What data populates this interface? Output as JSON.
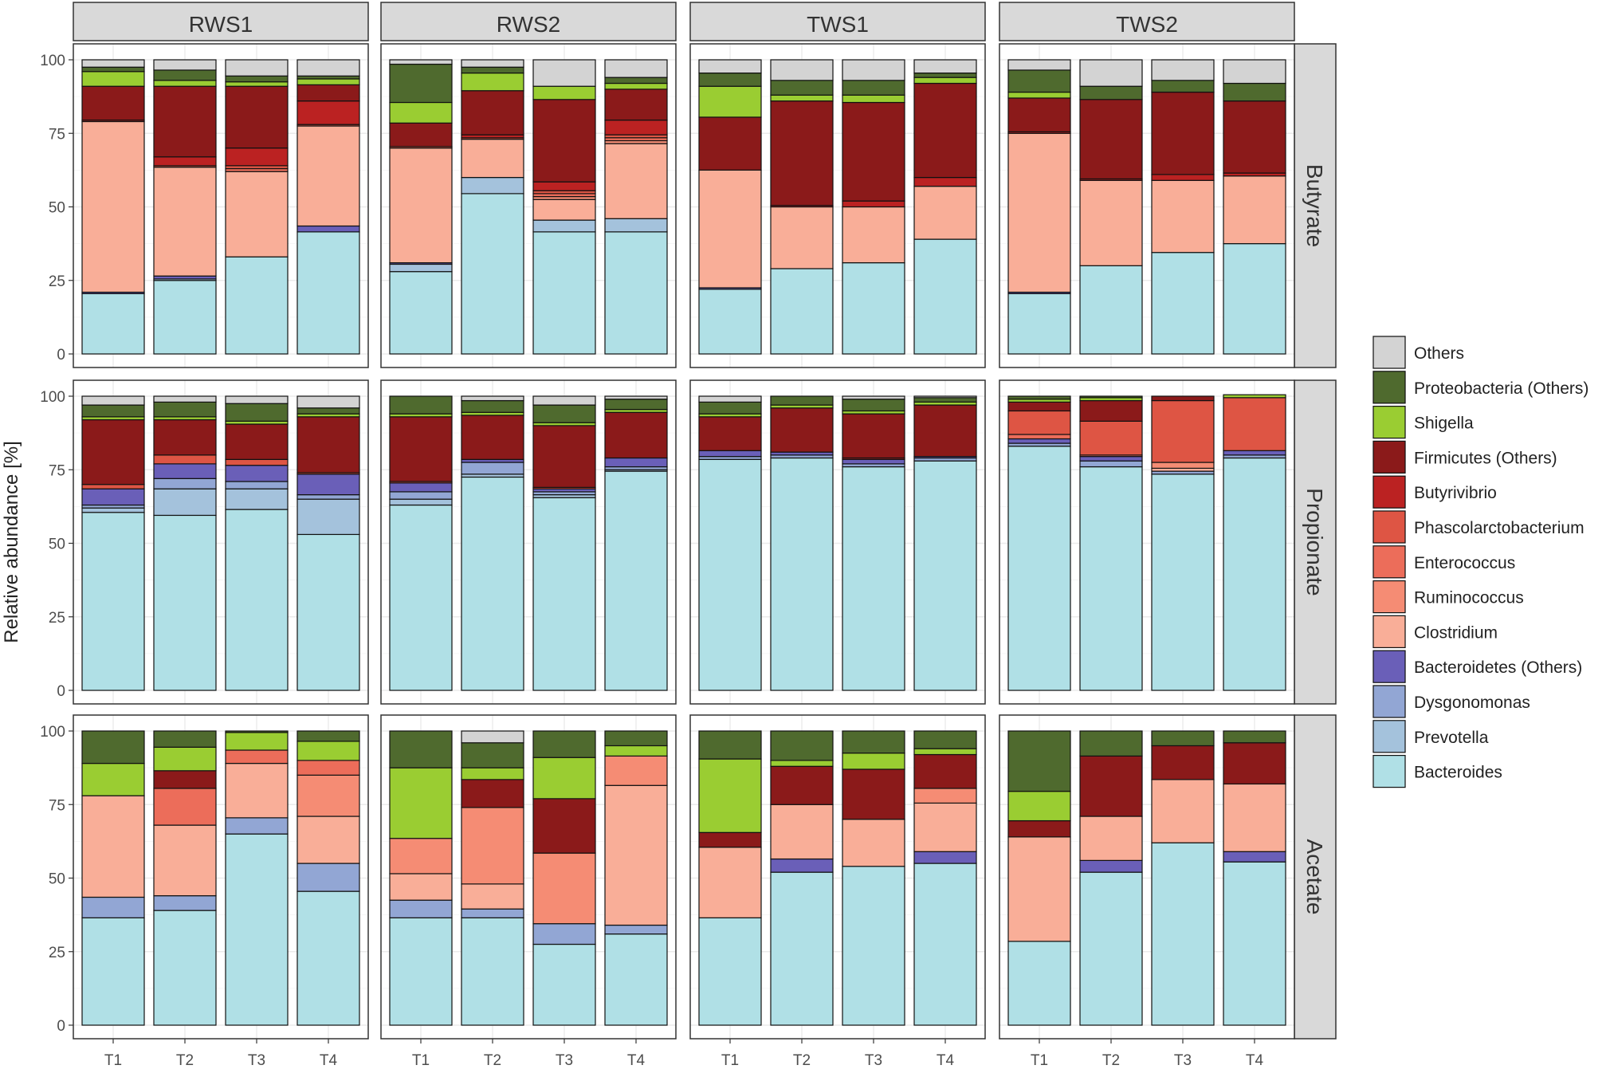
{
  "chart_data": {
    "type": "bar",
    "stacked": true,
    "title": "",
    "xlabel": "",
    "ylabel": "Relative abundance [%]",
    "ylim": [
      0,
      100
    ],
    "yticks": [
      0,
      25,
      50,
      75,
      100
    ],
    "grid": true,
    "legend_position": "right",
    "columns": [
      "RWS1",
      "RWS2",
      "TWS1",
      "TWS2"
    ],
    "rows": [
      "Butyrate",
      "Propionate",
      "Acetate"
    ],
    "categories": [
      "T1",
      "T2",
      "T3",
      "T4"
    ],
    "series": [
      {
        "name": "Bacteroides",
        "color": "#B0E0E6"
      },
      {
        "name": "Prevotella",
        "color": "#A4C2DC"
      },
      {
        "name": "Dysgonomonas",
        "color": "#92A6D4"
      },
      {
        "name": "Bacteroidetes (Others)",
        "color": "#6A5FB8"
      },
      {
        "name": "Clostridium",
        "color": "#F9AE98"
      },
      {
        "name": "Ruminococcus",
        "color": "#F58C74"
      },
      {
        "name": "Enterococcus",
        "color": "#EC6D5A"
      },
      {
        "name": "Phascolarctobacterium",
        "color": "#DE5544"
      },
      {
        "name": "Butyrivibrio",
        "color": "#BB2222"
      },
      {
        "name": "Firmicutes (Others)",
        "color": "#8B1A1A"
      },
      {
        "name": "Shigella",
        "color": "#9ACD32"
      },
      {
        "name": "Proteobacteria (Others)",
        "color": "#4F6A2E"
      },
      {
        "name": "Others",
        "color": "#D3D3D3"
      }
    ],
    "legend_order": [
      "Others",
      "Proteobacteria (Others)",
      "Shigella",
      "Firmicutes (Others)",
      "Butyrivibrio",
      "Phascolarctobacterium",
      "Enterococcus",
      "Ruminococcus",
      "Clostridium",
      "Bacteroidetes (Others)",
      "Dysgonomonas",
      "Prevotella",
      "Bacteroides"
    ],
    "panels": [
      {
        "row": "Butyrate",
        "column": "RWS1",
        "bars": [
          [
            20.5,
            0,
            0,
            0.5,
            58,
            0,
            0,
            0,
            0.5,
            11.5,
            5,
            1.5,
            2.5
          ],
          [
            25,
            0.5,
            0,
            1,
            37,
            0,
            0,
            0.5,
            3,
            24,
            2,
            3.5,
            3.5
          ],
          [
            33,
            0,
            0,
            0,
            29,
            0,
            1,
            1,
            6,
            21,
            1.5,
            2,
            5.5
          ],
          [
            41.5,
            0,
            0,
            2,
            34,
            0,
            0,
            0.5,
            8,
            5.5,
            2,
            1,
            5.5
          ]
        ]
      },
      {
        "row": "Butyrate",
        "column": "RWS2",
        "bars": [
          [
            28,
            2.5,
            0,
            0.5,
            39,
            0,
            0,
            0.5,
            0,
            8,
            7,
            13,
            1.5
          ],
          [
            54.5,
            5.5,
            0,
            0,
            13,
            0,
            0,
            0.5,
            1,
            15,
            6,
            2,
            2.5
          ],
          [
            41.5,
            4,
            0,
            0,
            7,
            1,
            1,
            1,
            3,
            28,
            4.5,
            0,
            9
          ],
          [
            41.5,
            4.5,
            0,
            0,
            25.5,
            1,
            1,
            1,
            5,
            10.5,
            2,
            2,
            6
          ]
        ]
      },
      {
        "row": "Butyrate",
        "column": "TWS1",
        "bars": [
          [
            22,
            0,
            0,
            0.5,
            40,
            0,
            0,
            0,
            0,
            18,
            10.5,
            4.5,
            4.5
          ],
          [
            29,
            0,
            0,
            0,
            21,
            0,
            0,
            0,
            0.5,
            35.5,
            2,
            5,
            7
          ],
          [
            31,
            0,
            0,
            0,
            19,
            0,
            0,
            0,
            2,
            33.5,
            2.5,
            5,
            7
          ],
          [
            39,
            0,
            0,
            0,
            18,
            0,
            0,
            0,
            3,
            32,
            2,
            1.5,
            4.5
          ]
        ]
      },
      {
        "row": "Butyrate",
        "column": "TWS2",
        "bars": [
          [
            20.5,
            0,
            0,
            0.5,
            54,
            0,
            0,
            0,
            0.5,
            11.5,
            2,
            7.5,
            3.5
          ],
          [
            30,
            0,
            0,
            0,
            29,
            0,
            0,
            0,
            0.5,
            27,
            0,
            4.5,
            9
          ],
          [
            34.5,
            0,
            0,
            0,
            24.5,
            0,
            0,
            0,
            2,
            28,
            0,
            4,
            7
          ],
          [
            37.5,
            0,
            0,
            0,
            23,
            0,
            0,
            0,
            1,
            24.5,
            0,
            6,
            8
          ]
        ]
      },
      {
        "row": "Propionate",
        "column": "RWS1",
        "bars": [
          [
            60.5,
            1.5,
            1,
            5.5,
            0,
            0,
            0,
            1.5,
            0,
            22,
            1,
            4,
            3
          ],
          [
            59.5,
            9,
            3.5,
            5,
            0,
            0,
            0,
            3,
            0,
            12,
            1,
            5,
            2
          ],
          [
            61.5,
            7,
            2.5,
            5.5,
            0,
            0,
            0,
            2,
            0,
            12,
            1,
            6,
            2.5
          ],
          [
            53,
            12,
            1.5,
            7,
            0,
            0,
            0,
            0.5,
            0,
            19,
            1,
            2,
            4
          ]
        ]
      },
      {
        "row": "Propionate",
        "column": "RWS2",
        "bars": [
          [
            63,
            2,
            2.5,
            3,
            0,
            0,
            0,
            0.5,
            0,
            22,
            1,
            6,
            0
          ],
          [
            72.5,
            1,
            4,
            1,
            0,
            0,
            0,
            0,
            0,
            15,
            1,
            4,
            1.5
          ],
          [
            65.5,
            1,
            1,
            1,
            0,
            0,
            0,
            0.5,
            0,
            21,
            1,
            6,
            3
          ],
          [
            74.5,
            0.5,
            1,
            3,
            0,
            0,
            0,
            0,
            0,
            15.5,
            1,
            3.5,
            1
          ]
        ]
      },
      {
        "row": "Propionate",
        "column": "TWS1",
        "bars": [
          [
            78.5,
            0,
            1,
            2,
            0,
            0,
            0,
            0,
            0,
            11.5,
            1,
            4,
            2
          ],
          [
            79,
            0,
            1,
            1,
            0,
            0,
            0,
            0,
            0,
            15,
            1,
            3,
            0
          ],
          [
            76,
            0,
            1,
            1.5,
            0,
            0,
            0,
            0,
            0.5,
            15,
            1,
            4,
            1
          ],
          [
            78,
            0,
            1,
            0.5,
            0,
            0,
            0,
            0,
            0,
            17.5,
            1,
            1.5,
            0.5
          ]
        ]
      },
      {
        "row": "Propionate",
        "column": "TWS2",
        "bars": [
          [
            83,
            0,
            1,
            1.5,
            0,
            0,
            1.5,
            8,
            0,
            3,
            1,
            1,
            0
          ],
          [
            76,
            0,
            2,
            1.5,
            0,
            0,
            0.5,
            11.5,
            0,
            7,
            1,
            0.5,
            0
          ],
          [
            73.5,
            0,
            1,
            0,
            1,
            2,
            0,
            21,
            0,
            1.5,
            0,
            0,
            0
          ],
          [
            79,
            0,
            1,
            1.5,
            0,
            0,
            0,
            18,
            0,
            0,
            1,
            0,
            0
          ]
        ]
      },
      {
        "row": "Acetate",
        "column": "RWS1",
        "bars": [
          [
            36.5,
            0,
            7,
            0,
            34.5,
            0,
            0,
            0,
            0,
            0,
            11,
            11,
            0
          ],
          [
            39,
            0,
            5,
            0,
            24,
            0,
            12.5,
            0,
            0,
            6,
            8,
            5.5,
            0
          ],
          [
            65,
            0,
            5.5,
            0,
            18.5,
            0,
            4.5,
            0,
            0,
            0,
            6,
            0.5,
            0
          ],
          [
            45.5,
            0,
            9.5,
            0,
            16,
            14,
            5,
            0,
            0,
            0,
            6.5,
            3.5,
            0
          ]
        ]
      },
      {
        "row": "Acetate",
        "column": "RWS2",
        "bars": [
          [
            36.5,
            0,
            6,
            0,
            9,
            12,
            0,
            0,
            0,
            0,
            24,
            12.5,
            0
          ],
          [
            36.5,
            0,
            3,
            0,
            8.5,
            26,
            0,
            0,
            0,
            9.5,
            4,
            8.5,
            4
          ],
          [
            27.5,
            0,
            7,
            0,
            0,
            24,
            0,
            0,
            0,
            18.5,
            14,
            9,
            0
          ],
          [
            31,
            0,
            3,
            0,
            47.5,
            10,
            0,
            0,
            0,
            0,
            3.5,
            5,
            0
          ]
        ]
      },
      {
        "row": "Acetate",
        "column": "TWS1",
        "bars": [
          [
            36.5,
            0,
            0,
            0,
            24,
            0,
            0,
            0,
            0,
            5,
            25,
            9.5,
            0
          ],
          [
            52,
            0,
            0,
            4.5,
            18.5,
            0,
            0,
            0,
            0,
            13,
            2,
            10,
            0
          ],
          [
            54,
            0,
            0,
            0,
            16,
            0,
            0,
            0,
            0,
            17,
            5.5,
            7.5,
            0
          ],
          [
            55,
            0,
            0,
            4,
            16.5,
            5,
            0,
            0,
            0,
            11.5,
            2,
            6,
            0
          ]
        ]
      },
      {
        "row": "Acetate",
        "column": "TWS2",
        "bars": [
          [
            28.5,
            0,
            0,
            0,
            35.5,
            0,
            0,
            0,
            0,
            5.5,
            10,
            20.5,
            0
          ],
          [
            52,
            0,
            0,
            4,
            15,
            0,
            0,
            0,
            0,
            20.5,
            0,
            8.5,
            0
          ],
          [
            62,
            0,
            0,
            0,
            21.5,
            0,
            0,
            0,
            0,
            11.5,
            0,
            5,
            0
          ],
          [
            55.5,
            0,
            0,
            3.5,
            23,
            0,
            0,
            0,
            0,
            14,
            0,
            4,
            0
          ]
        ]
      }
    ]
  }
}
